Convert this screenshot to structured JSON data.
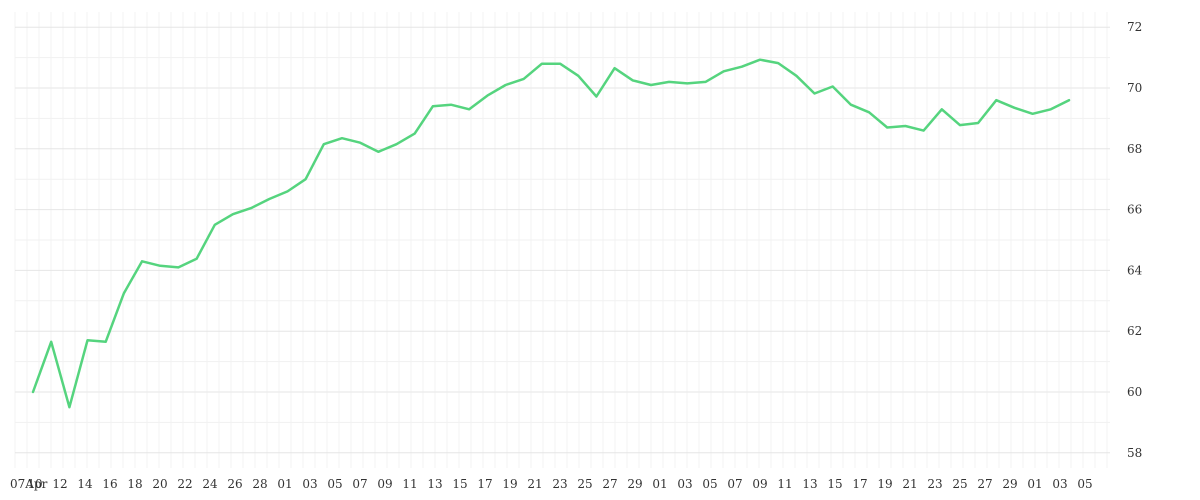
{
  "chart_data": {
    "type": "line",
    "x_tick_labels": [
      "07Apr",
      "10",
      "12",
      "14",
      "16",
      "18",
      "20",
      "22",
      "24",
      "26",
      "28",
      "01",
      "03",
      "05",
      "07",
      "09",
      "11",
      "13",
      "15",
      "17",
      "19",
      "21",
      "23",
      "25",
      "27",
      "29",
      "01",
      "03",
      "05",
      "07",
      "09",
      "11",
      "13",
      "15",
      "17",
      "19",
      "21",
      "23",
      "25",
      "27",
      "29",
      "01",
      "03",
      "05"
    ],
    "y_ticks": [
      58,
      60,
      62,
      64,
      66,
      68,
      70,
      72
    ],
    "ylim": [
      57.5,
      72.5
    ],
    "grid": true,
    "y_axis_position": "right",
    "series": [
      {
        "color": "#55d47e",
        "values": [
          60.0,
          61.65,
          59.5,
          61.7,
          61.65,
          63.25,
          64.3,
          64.15,
          64.1,
          64.38,
          65.5,
          65.85,
          66.05,
          66.35,
          66.6,
          67.0,
          68.15,
          68.35,
          68.2,
          67.9,
          68.15,
          68.5,
          69.4,
          69.45,
          69.3,
          69.75,
          70.1,
          70.3,
          70.8,
          70.8,
          70.4,
          69.72,
          70.65,
          70.25,
          70.1,
          70.2,
          70.15,
          70.2,
          70.55,
          70.7,
          70.93,
          70.82,
          70.4,
          69.82,
          70.05,
          69.45,
          69.2,
          68.7,
          68.75,
          68.6,
          69.3,
          68.78,
          68.85,
          69.6,
          69.35,
          69.15,
          69.3,
          69.6
        ]
      }
    ]
  }
}
